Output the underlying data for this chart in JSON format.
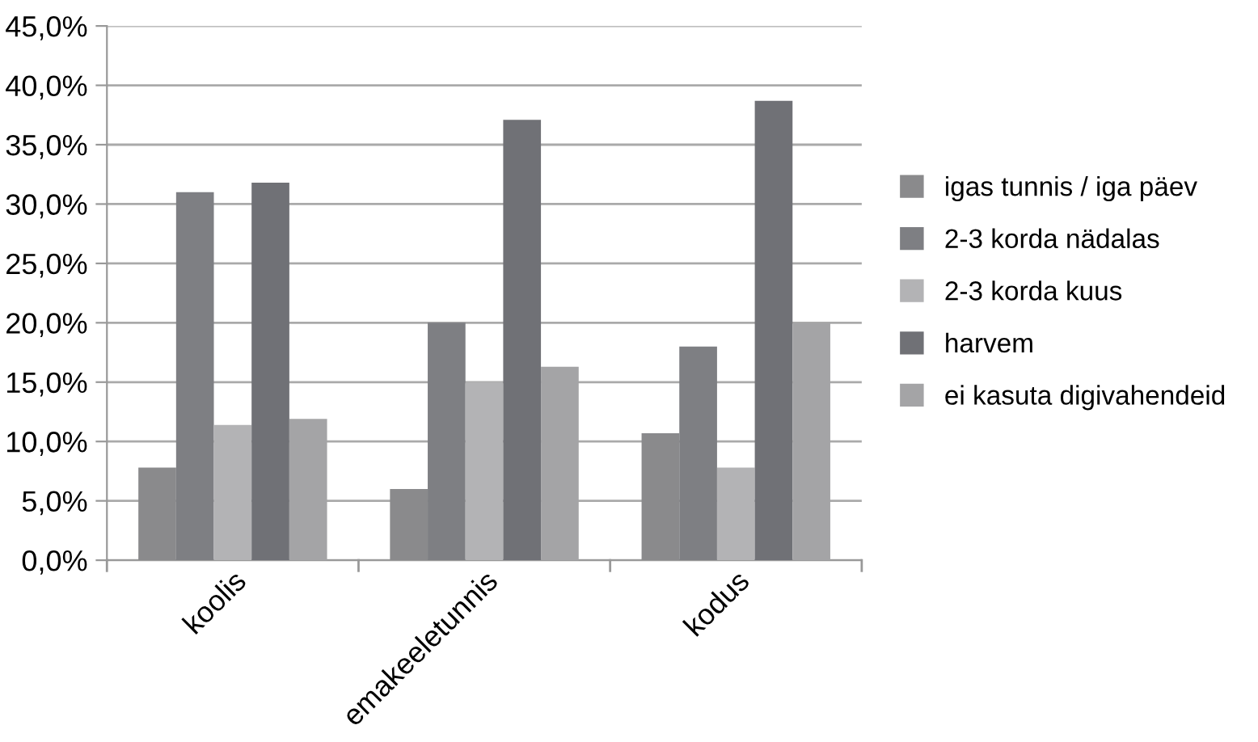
{
  "chart_data": {
    "type": "bar",
    "categories": [
      "koolis",
      "emakeeletunnis",
      "kodus"
    ],
    "series": [
      {
        "name": "igas tunnis / iga päev",
        "color": "#8a8a8c",
        "values": [
          7.8,
          6.0,
          10.7
        ]
      },
      {
        "name": "2-3 korda nädalas",
        "color": "#7e7f83",
        "values": [
          31.0,
          20.0,
          18.0
        ]
      },
      {
        "name": "2-3 korda kuus",
        "color": "#b3b3b5",
        "values": [
          11.4,
          15.0,
          7.8
        ]
      },
      {
        "name": "harvem",
        "color": "#707176",
        "values": [
          31.8,
          37.1,
          38.7
        ]
      },
      {
        "name": "ei kasuta digivahendeid",
        "color": "#a4a4a6",
        "values": [
          11.9,
          16.3,
          20.0
        ]
      }
    ],
    "ylim": [
      0,
      45
    ],
    "yticks": [
      {
        "value": 0,
        "label": "0,0%"
      },
      {
        "value": 5,
        "label": "5,0%"
      },
      {
        "value": 10,
        "label": "10,0%"
      },
      {
        "value": 15,
        "label": "15,0%"
      },
      {
        "value": 20,
        "label": "20,0%"
      },
      {
        "value": 25,
        "label": "25,0%"
      },
      {
        "value": 30,
        "label": "30,0%"
      },
      {
        "value": 35,
        "label": "35,0%"
      },
      {
        "value": 40,
        "label": "40,0%"
      },
      {
        "value": 45,
        "label": "45,0%"
      }
    ],
    "grid": "y",
    "legend": "right"
  }
}
